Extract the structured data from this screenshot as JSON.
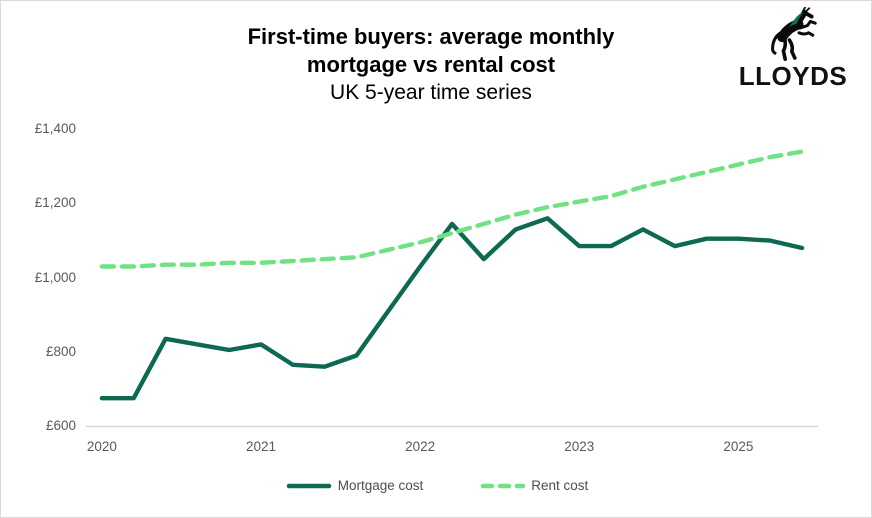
{
  "page": {
    "background": "#ffffff",
    "border_color": "#d9d9d9"
  },
  "header": {
    "title_line1": "First-time buyers: average monthly",
    "title_line2": "mortgage vs rental cost",
    "subtitle": "UK 5-year time series"
  },
  "logo": {
    "brand": "LLOYDS",
    "icon": "black-horse-rearing-icon",
    "horse_color": "#0b0b0b",
    "horse_accent_color": "#0e7150",
    "wordmark_color": "#111111"
  },
  "chart_data": {
    "type": "line",
    "title": "First-time buyers: average monthly mortgage vs rental cost",
    "subtitle": "UK 5-year time series",
    "xlabel": "",
    "ylabel": "",
    "ylim": [
      600,
      1400
    ],
    "gridlines": false,
    "legend_position": "bottom",
    "axis_line_color": "#d9d9d9",
    "tick_label_color": "#595959",
    "currency": "GBP",
    "categories": [
      "2020 Q1",
      "2020 Q2",
      "2020 Q3",
      "2020 Q4",
      "2021 Q1",
      "2021 Q2",
      "2021 Q3",
      "2021 Q4",
      "2022 Q1",
      "2022 Q2",
      "2022 Q3",
      "2022 Q4",
      "2023 Q1",
      "2023 Q2",
      "2023 Q3",
      "2023 Q4",
      "2024 Q1",
      "2024 Q2",
      "2024 Q3",
      "2024 Q4",
      "2025 Q1",
      "2025 Q2",
      "2025 Q3"
    ],
    "x_ticks": [
      {
        "label": "2020",
        "index": 0
      },
      {
        "label": "2021",
        "index": 5
      },
      {
        "label": "2022",
        "index": 10
      },
      {
        "label": "2023",
        "index": 15
      },
      {
        "label": "2025",
        "index": 20
      }
    ],
    "y_ticks": [
      {
        "label": "£600",
        "value": 600
      },
      {
        "label": "£800",
        "value": 800
      },
      {
        "label": "£1,000",
        "value": 1000
      },
      {
        "label": "£1,200",
        "value": 1200
      },
      {
        "label": "£1,400",
        "value": 1400
      }
    ],
    "series": [
      {
        "name": "Mortgage cost",
        "style": "solid",
        "color": "#0d6952",
        "values": [
          675,
          675,
          835,
          820,
          805,
          820,
          765,
          760,
          790,
          910,
          1030,
          1145,
          1050,
          1130,
          1160,
          1085,
          1085,
          1130,
          1085,
          1105,
          1105,
          1100,
          1080
        ]
      },
      {
        "name": "Rent cost",
        "style": "dashed",
        "color": "#70e283",
        "values": [
          1030,
          1030,
          1035,
          1035,
          1040,
          1040,
          1045,
          1050,
          1055,
          1075,
          1095,
          1120,
          1145,
          1170,
          1190,
          1205,
          1220,
          1245,
          1265,
          1285,
          1305,
          1325,
          1340
        ]
      }
    ]
  }
}
